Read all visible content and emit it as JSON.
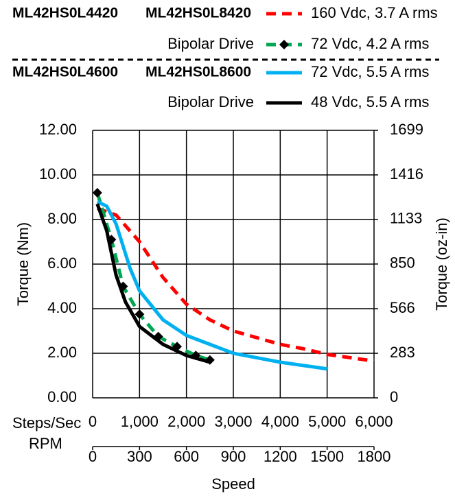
{
  "chart_data": {
    "type": "line",
    "legend_groups": [
      {
        "models": [
          "ML42HS0L4420",
          "ML42HS0L8420"
        ],
        "drive": "Bipolar Drive"
      },
      {
        "models": [
          "ML42HS0L4600",
          "ML42HS0L8600"
        ],
        "drive": "Bipolar Drive"
      }
    ],
    "x_label": "Steps/Sec",
    "x2_label": "RPM",
    "x_title": "Speed",
    "y_label": "Torque (Nm)",
    "y2_label": "Torque (oz-in)",
    "xlim": [
      0,
      6000
    ],
    "xticks": [
      0,
      {
        "value": 1000,
        "label": "1,000"
      },
      {
        "value": 2000,
        "label": "2,000"
      },
      {
        "value": 3000,
        "label": "3,000"
      },
      {
        "value": 4000,
        "label": "4,000"
      },
      {
        "value": 5000,
        "label": "5,000"
      },
      {
        "value": 6000,
        "label": "6,000"
      }
    ],
    "x2lim": [
      0,
      1800
    ],
    "x2ticks": [
      0,
      300,
      600,
      900,
      1200,
      1500,
      1800
    ],
    "ylim": [
      0,
      12
    ],
    "yticks": [
      {
        "value": 0,
        "label": "0.00"
      },
      {
        "value": 2,
        "label": "2.00"
      },
      {
        "value": 4,
        "label": "4.00"
      },
      {
        "value": 6,
        "label": "6.00"
      },
      {
        "value": 8,
        "label": "8.00"
      },
      {
        "value": 10,
        "label": "10.00"
      },
      {
        "value": 12,
        "label": "12.00"
      }
    ],
    "y2lim": [
      0,
      1699
    ],
    "y2ticks": [
      0,
      283,
      566,
      850,
      1133,
      1416,
      1699
    ],
    "grid": true,
    "series": [
      {
        "name": "160 Vdc, 3.7 A rms",
        "color": "#ff0000",
        "line_style": "dashed",
        "marker": "none",
        "x": [
          100,
          500,
          1000,
          1500,
          2000,
          2500,
          3000,
          3500,
          4000,
          4500,
          5000,
          5500,
          6000
        ],
        "values": [
          8.5,
          8.2,
          7.0,
          5.4,
          4.2,
          3.5,
          3.0,
          2.7,
          2.4,
          2.2,
          1.95,
          1.8,
          1.65
        ]
      },
      {
        "name": "72 Vdc, 4.2 A rms",
        "color": "#00a651",
        "line_style": "dashed",
        "marker": "diamond",
        "x": [
          100,
          400,
          650,
          1000,
          1400,
          1800,
          2200,
          2500
        ],
        "values": [
          9.2,
          7.1,
          5.0,
          3.75,
          2.75,
          2.3,
          1.9,
          1.7
        ]
      },
      {
        "name": "72 Vdc, 5.5 A rms",
        "color": "#00b0f0",
        "line_style": "solid",
        "marker": "none",
        "x": [
          100,
          300,
          500,
          800,
          1000,
          1500,
          2000,
          2500,
          3000,
          4000,
          5000
        ],
        "values": [
          8.8,
          8.6,
          7.8,
          5.8,
          4.8,
          3.5,
          2.8,
          2.4,
          2.0,
          1.6,
          1.3
        ]
      },
      {
        "name": "48 Vdc, 5.5 A rms",
        "color": "#000000",
        "line_style": "solid",
        "marker": "none",
        "x": [
          100,
          300,
          500,
          700,
          1000,
          1500,
          2000,
          2500
        ],
        "values": [
          8.7,
          7.5,
          5.5,
          4.3,
          3.2,
          2.4,
          1.9,
          1.6
        ]
      }
    ]
  }
}
